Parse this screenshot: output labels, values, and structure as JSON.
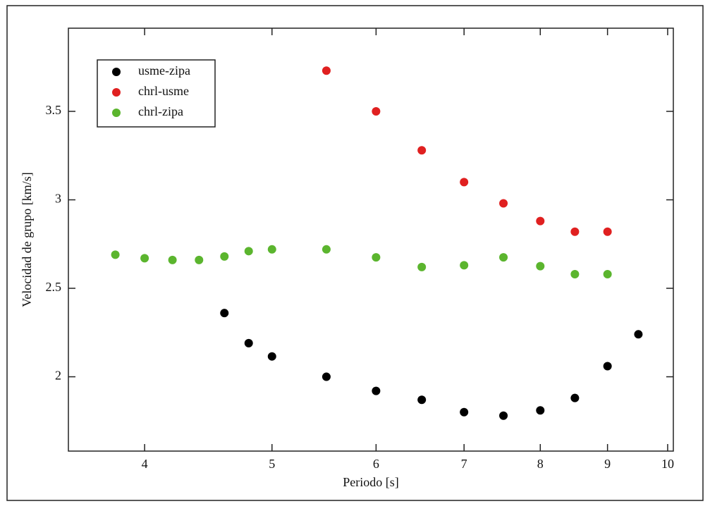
{
  "chart_data": {
    "type": "scatter",
    "x_label": "Periodo   [s]",
    "y_label": "Velocidad de grupo   [km/s]",
    "xscale": "log",
    "xlim": [
      3.5,
      10.1
    ],
    "xticks": [
      4,
      5,
      6,
      7,
      8,
      9,
      10
    ],
    "ylim": [
      1.58,
      3.97
    ],
    "yticks": [
      2,
      2.5,
      3,
      3.5
    ],
    "legend": "upper left",
    "series": [
      {
        "name": "usme-zipa",
        "color": "#000000",
        "x": [
          4.6,
          4.8,
          5,
          5.5,
          6,
          6.5,
          7,
          7.5,
          8,
          8.5,
          9,
          9.5
        ],
        "values": [
          2.36,
          2.19,
          2.115,
          2.0,
          1.92,
          1.87,
          1.8,
          1.78,
          1.81,
          1.88,
          2.06,
          2.24
        ]
      },
      {
        "name": "chrl-usme",
        "color": "#e02020",
        "x": [
          5.5,
          6,
          6.5,
          7,
          7.5,
          8,
          8.5,
          9
        ],
        "values": [
          3.73,
          3.5,
          3.28,
          3.1,
          2.98,
          2.88,
          2.82,
          2.82
        ]
      },
      {
        "name": "chrl-zipa",
        "color": "#5bb52e",
        "x": [
          3.8,
          4,
          4.2,
          4.4,
          4.6,
          4.8,
          5,
          5.5,
          6,
          6.5,
          7,
          7.5,
          8,
          8.5,
          9
        ],
        "values": [
          2.69,
          2.67,
          2.66,
          2.66,
          2.68,
          2.71,
          2.72,
          2.72,
          2.675,
          2.62,
          2.63,
          2.675,
          2.625,
          2.58,
          2.58
        ]
      }
    ]
  }
}
